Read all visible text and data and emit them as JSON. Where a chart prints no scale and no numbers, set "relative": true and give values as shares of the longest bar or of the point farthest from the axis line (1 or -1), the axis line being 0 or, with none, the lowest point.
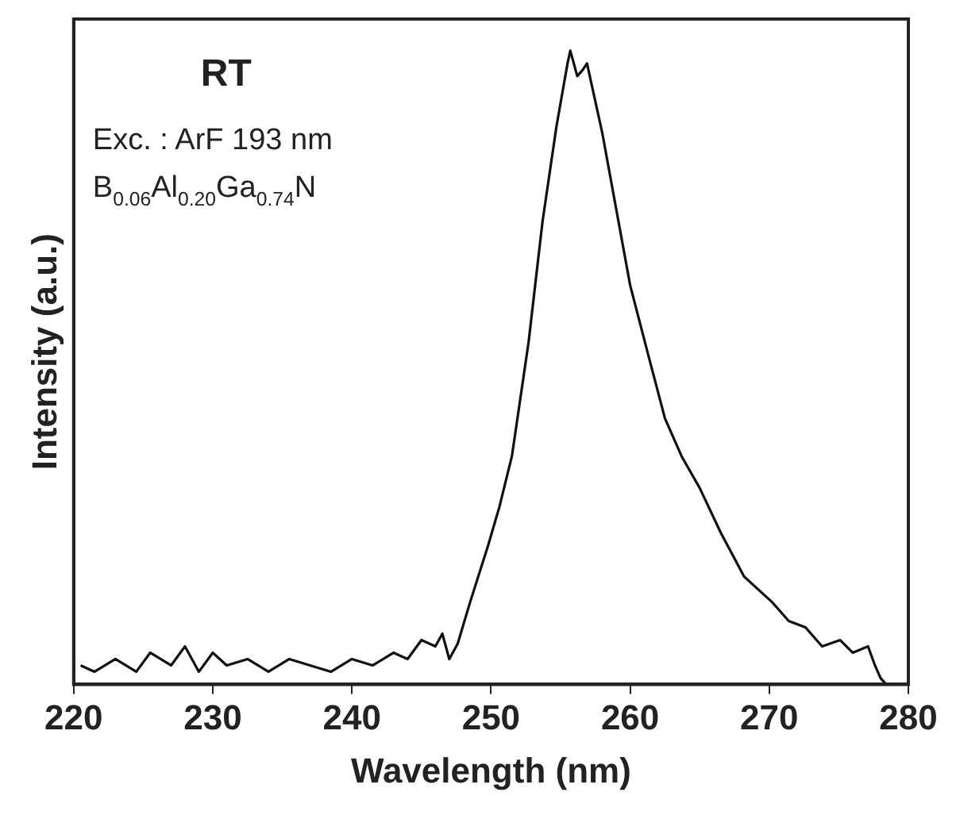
{
  "chart_data": {
    "type": "line",
    "xlabel": "Wavelength (nm)",
    "ylabel": "Intensity (a.u.)",
    "annotations": [
      "RT",
      "Exc. : ArF 193 nm",
      "B$_{0.06}$Al$_{0.20}$Ga$_{0.74}$N"
    ],
    "x": [
      220.5,
      221.5,
      223,
      224.5,
      225.5,
      227,
      228,
      229,
      230,
      231,
      232.5,
      234,
      235.5,
      237,
      238.5,
      240,
      241.5,
      243,
      244,
      245,
      246,
      246.5,
      247,
      247.6,
      248.5,
      249.8,
      250.6,
      251.5,
      252.7,
      253.7,
      254.7,
      255.5,
      255.7,
      256.2,
      256.6,
      256.9,
      257.4,
      258,
      259,
      260,
      261.3,
      262.5,
      263.7,
      265,
      266.5,
      268.2,
      269.2,
      270.2,
      271.4,
      272.6,
      273.8,
      275.1,
      276,
      277.1,
      277.6,
      278,
      278.4
    ],
    "values": [
      0.03,
      0.02,
      0.04,
      0.02,
      0.05,
      0.03,
      0.06,
      0.02,
      0.05,
      0.03,
      0.04,
      0.02,
      0.04,
      0.03,
      0.02,
      0.04,
      0.03,
      0.05,
      0.04,
      0.07,
      0.06,
      0.08,
      0.04,
      0.064,
      0.13,
      0.22,
      0.28,
      0.36,
      0.54,
      0.73,
      0.88,
      0.98,
      1.0,
      0.96,
      0.97,
      0.98,
      0.93,
      0.87,
      0.75,
      0.63,
      0.52,
      0.42,
      0.36,
      0.31,
      0.24,
      0.17,
      0.15,
      0.13,
      0.1,
      0.09,
      0.06,
      0.07,
      0.05,
      0.06,
      0.03,
      0.01,
      0.0
    ],
    "color": "#111111",
    "relative": true,
    "xlim": [
      220,
      280
    ],
    "xticks": [
      220,
      230,
      240,
      250,
      260,
      270,
      280
    ],
    "tick_labels": "x",
    "marker": "none",
    "line_style": "solid"
  }
}
